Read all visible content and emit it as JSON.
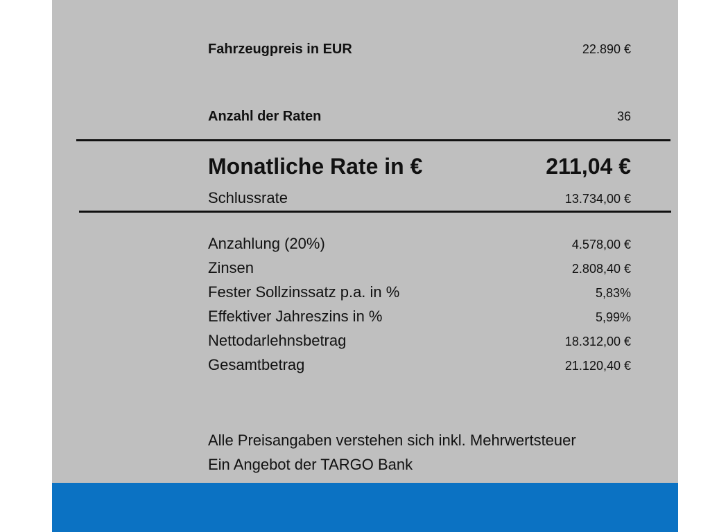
{
  "top": {
    "vehicle_price": {
      "label": "Fahrzeugpreis in EUR",
      "value": "22.890 €"
    },
    "installments": {
      "label": "Anzahl der Raten",
      "value": "36"
    }
  },
  "highlight": {
    "monthly": {
      "label": "Monatliche Rate in €",
      "value": "211,04 €"
    },
    "final": {
      "label": "Schlussrate",
      "value": "13.734,00 €"
    }
  },
  "details": [
    {
      "label": "Anzahlung (20%)",
      "value": "4.578,00 €"
    },
    {
      "label": "Zinsen",
      "value": "2.808,40 €"
    },
    {
      "label": "Fester Sollzinssatz p.a. in %",
      "value": "5,83%"
    },
    {
      "label": "Effektiver Jahreszins in %",
      "value": "5,99%"
    },
    {
      "label": "Nettodarlehnsbetrag",
      "value": "18.312,00 €"
    },
    {
      "label": "Gesamtbetrag",
      "value": "21.120,40 €"
    }
  ],
  "notes": [
    "Alle Preisangaben verstehen sich inkl. Mehrwertsteuer",
    "Ein Angebot der TARGO Bank"
  ]
}
